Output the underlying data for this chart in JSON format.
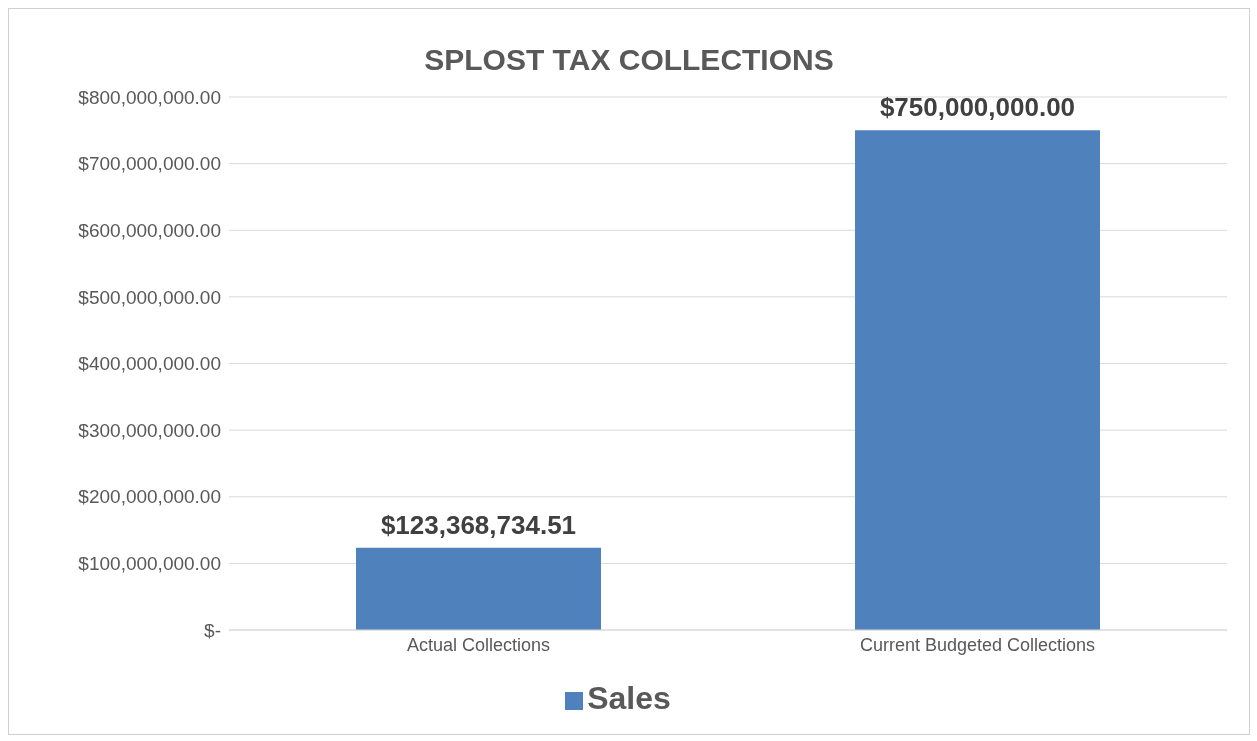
{
  "chart_data": {
    "type": "bar",
    "title": "SPLOST TAX COLLECTIONS",
    "categories": [
      "Actual Collections",
      "Current Budgeted Collections"
    ],
    "series": [
      {
        "name": "Sales",
        "color": "#4f81bd",
        "values": [
          123368734.51,
          750000000
        ],
        "value_labels": [
          "$123,368,734.51",
          "$750,000,000.00"
        ]
      }
    ],
    "ylim": [
      0,
      800000000
    ],
    "yticks": [
      {
        "value": 0,
        "label": "$-"
      },
      {
        "value": 100000000,
        "label": "$100,000,000.00"
      },
      {
        "value": 200000000,
        "label": "$200,000,000.00"
      },
      {
        "value": 300000000,
        "label": "$300,000,000.00"
      },
      {
        "value": 400000000,
        "label": "$400,000,000.00"
      },
      {
        "value": 500000000,
        "label": "$500,000,000.00"
      },
      {
        "value": 600000000,
        "label": "$600,000,000.00"
      },
      {
        "value": 700000000,
        "label": "$700,000,000.00"
      },
      {
        "value": 800000000,
        "label": "$800,000,000.00"
      }
    ],
    "grid": "y",
    "legend": "bottom"
  }
}
